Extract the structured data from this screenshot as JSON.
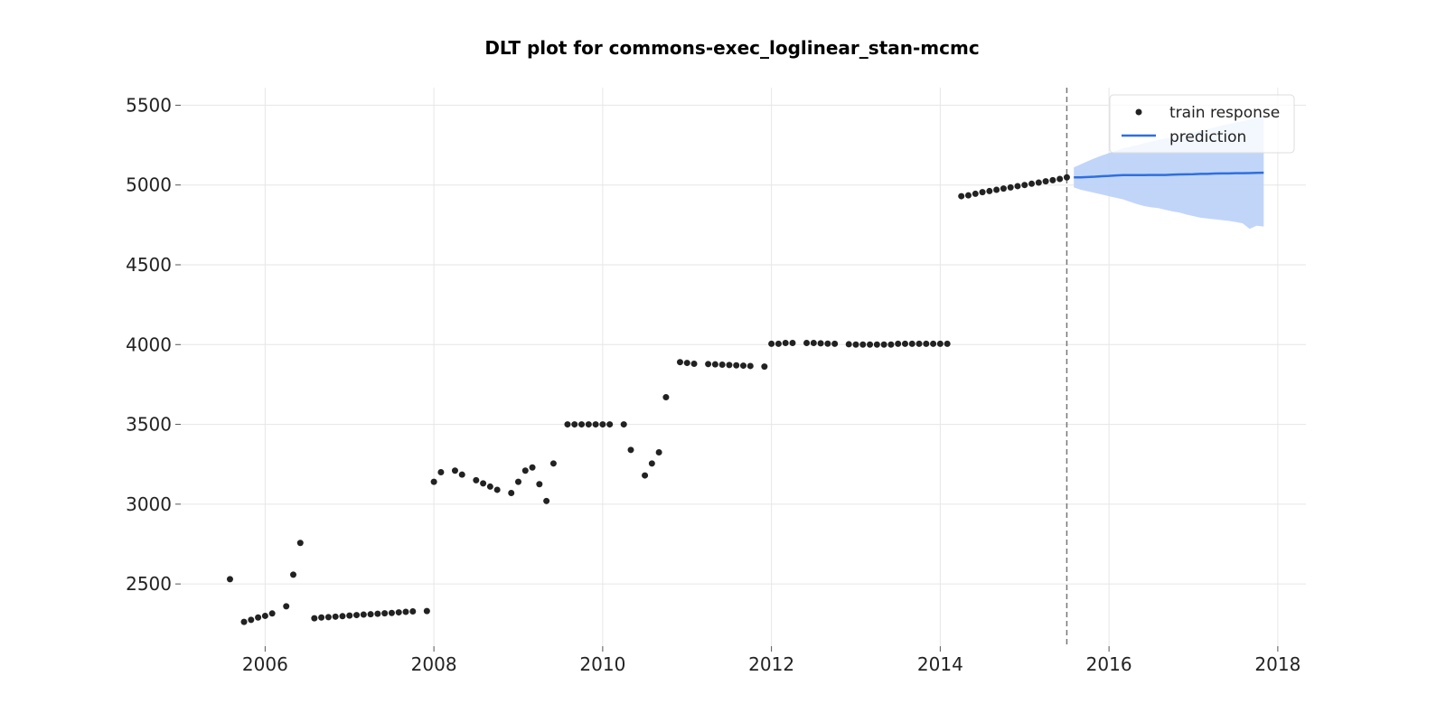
{
  "chart_data": {
    "type": "scatter",
    "title": "DLT plot for commons-exec_loglinear_stan-mcmc",
    "xlabel": "",
    "ylabel": "",
    "x_ticks": [
      "2006",
      "2008",
      "2010",
      "2012",
      "2014",
      "2016",
      "2018"
    ],
    "y_ticks": [
      "2500",
      "3000",
      "3500",
      "4000",
      "4500",
      "5000",
      "5500"
    ],
    "xlim": [
      "2005-01-01",
      "2018-05-01"
    ],
    "ylim": [
      2110,
      5610
    ],
    "grid": true,
    "legend_position": "top-right",
    "training_end": "2015-07-01",
    "series": [
      {
        "name": "train response",
        "kind": "scatter",
        "color": "#222222",
        "points": [
          [
            "2005-08-01",
            2530
          ],
          [
            "2005-10-01",
            2262
          ],
          [
            "2005-11-01",
            2275
          ],
          [
            "2005-12-01",
            2290
          ],
          [
            "2006-01-01",
            2300
          ],
          [
            "2006-02-01",
            2315
          ],
          [
            "2006-04-01",
            2360
          ],
          [
            "2006-05-01",
            2558
          ],
          [
            "2006-06-01",
            2757
          ],
          [
            "2006-08-01",
            2285
          ],
          [
            "2006-09-01",
            2290
          ],
          [
            "2006-10-01",
            2292
          ],
          [
            "2006-11-01",
            2295
          ],
          [
            "2006-12-01",
            2298
          ],
          [
            "2007-01-01",
            2302
          ],
          [
            "2007-02-01",
            2305
          ],
          [
            "2007-03-01",
            2308
          ],
          [
            "2007-04-01",
            2310
          ],
          [
            "2007-05-01",
            2313
          ],
          [
            "2007-06-01",
            2316
          ],
          [
            "2007-07-01",
            2318
          ],
          [
            "2007-08-01",
            2322
          ],
          [
            "2007-09-01",
            2325
          ],
          [
            "2007-10-01",
            2328
          ],
          [
            "2007-12-01",
            2330
          ],
          [
            "2008-01-01",
            3140
          ],
          [
            "2008-02-01",
            3200
          ],
          [
            "2008-04-01",
            3210
          ],
          [
            "2008-05-01",
            3185
          ],
          [
            "2008-07-01",
            3150
          ],
          [
            "2008-08-01",
            3130
          ],
          [
            "2008-09-01",
            3110
          ],
          [
            "2008-10-01",
            3090
          ],
          [
            "2008-12-01",
            3070
          ],
          [
            "2009-01-01",
            3140
          ],
          [
            "2009-02-01",
            3210
          ],
          [
            "2009-03-01",
            3230
          ],
          [
            "2009-04-01",
            3125
          ],
          [
            "2009-05-01",
            3020
          ],
          [
            "2009-06-01",
            3255
          ],
          [
            "2009-08-01",
            3500
          ],
          [
            "2009-09-01",
            3500
          ],
          [
            "2009-10-01",
            3500
          ],
          [
            "2009-11-01",
            3500
          ],
          [
            "2009-12-01",
            3500
          ],
          [
            "2010-01-01",
            3500
          ],
          [
            "2010-02-01",
            3500
          ],
          [
            "2010-04-01",
            3500
          ],
          [
            "2010-05-01",
            3340
          ],
          [
            "2010-07-01",
            3180
          ],
          [
            "2010-08-01",
            3255
          ],
          [
            "2010-09-01",
            3325
          ],
          [
            "2010-10-01",
            3670
          ],
          [
            "2010-12-01",
            3890
          ],
          [
            "2011-01-01",
            3885
          ],
          [
            "2011-02-01",
            3880
          ],
          [
            "2011-04-01",
            3878
          ],
          [
            "2011-05-01",
            3876
          ],
          [
            "2011-06-01",
            3874
          ],
          [
            "2011-07-01",
            3872
          ],
          [
            "2011-08-01",
            3870
          ],
          [
            "2011-09-01",
            3868
          ],
          [
            "2011-10-01",
            3866
          ],
          [
            "2011-12-01",
            3862
          ],
          [
            "2012-01-01",
            4005
          ],
          [
            "2012-02-01",
            4005
          ],
          [
            "2012-03-01",
            4010
          ],
          [
            "2012-04-01",
            4010
          ],
          [
            "2012-06-01",
            4010
          ],
          [
            "2012-07-01",
            4010
          ],
          [
            "2012-08-01",
            4008
          ],
          [
            "2012-09-01",
            4006
          ],
          [
            "2012-10-01",
            4005
          ],
          [
            "2012-12-01",
            4002
          ],
          [
            "2013-01-01",
            4000
          ],
          [
            "2013-02-01",
            4000
          ],
          [
            "2013-03-01",
            4000
          ],
          [
            "2013-04-01",
            4000
          ],
          [
            "2013-05-01",
            4000
          ],
          [
            "2013-06-01",
            4000
          ],
          [
            "2013-07-01",
            4005
          ],
          [
            "2013-08-01",
            4005
          ],
          [
            "2013-09-01",
            4005
          ],
          [
            "2013-10-01",
            4005
          ],
          [
            "2013-11-01",
            4005
          ],
          [
            "2013-12-01",
            4005
          ],
          [
            "2014-01-01",
            4005
          ],
          [
            "2014-02-01",
            4005
          ],
          [
            "2014-04-01",
            4930
          ],
          [
            "2014-05-01",
            4935
          ],
          [
            "2014-06-01",
            4945
          ],
          [
            "2014-07-01",
            4955
          ],
          [
            "2014-08-01",
            4962
          ],
          [
            "2014-09-01",
            4970
          ],
          [
            "2014-10-01",
            4978
          ],
          [
            "2014-11-01",
            4985
          ],
          [
            "2014-12-01",
            4993
          ],
          [
            "2015-01-01",
            5000
          ],
          [
            "2015-02-01",
            5008
          ],
          [
            "2015-03-01",
            5015
          ],
          [
            "2015-04-01",
            5023
          ],
          [
            "2015-05-01",
            5030
          ],
          [
            "2015-06-01",
            5038
          ],
          [
            "2015-07-01",
            5048
          ]
        ]
      },
      {
        "name": "prediction",
        "kind": "line",
        "color": "#2F6FDD",
        "band_color": "#BED3F9",
        "points": [
          [
            "2015-08-01",
            5048,
            4985,
            5110
          ],
          [
            "2015-09-01",
            5048,
            4970,
            5130
          ],
          [
            "2015-10-01",
            5050,
            4960,
            5150
          ],
          [
            "2015-11-01",
            5052,
            4950,
            5168
          ],
          [
            "2015-12-01",
            5055,
            4940,
            5185
          ],
          [
            "2016-01-01",
            5057,
            4930,
            5200
          ],
          [
            "2016-02-01",
            5060,
            4920,
            5215
          ],
          [
            "2016-03-01",
            5062,
            4910,
            5230
          ],
          [
            "2016-04-01",
            5062,
            4895,
            5240
          ],
          [
            "2016-05-01",
            5062,
            4880,
            5250
          ],
          [
            "2016-06-01",
            5062,
            4868,
            5262
          ],
          [
            "2016-07-01",
            5063,
            4860,
            5272
          ],
          [
            "2016-08-01",
            5063,
            4855,
            5282
          ],
          [
            "2016-09-01",
            5063,
            4845,
            5292
          ],
          [
            "2016-10-01",
            5065,
            4835,
            5300
          ],
          [
            "2016-11-01",
            5066,
            4828,
            5310
          ],
          [
            "2016-12-01",
            5067,
            4815,
            5320
          ],
          [
            "2017-01-01",
            5068,
            4805,
            5330
          ],
          [
            "2017-02-01",
            5070,
            4795,
            5340
          ],
          [
            "2017-03-01",
            5070,
            4790,
            5350
          ],
          [
            "2017-04-01",
            5072,
            4785,
            5360
          ],
          [
            "2017-05-01",
            5073,
            4780,
            5372
          ],
          [
            "2017-06-01",
            5073,
            4775,
            5382
          ],
          [
            "2017-07-01",
            5074,
            4768,
            5392
          ],
          [
            "2017-08-01",
            5074,
            4760,
            5400
          ],
          [
            "2017-09-01",
            5075,
            4725,
            5410
          ],
          [
            "2017-10-01",
            5076,
            4745,
            5420
          ],
          [
            "2017-11-01",
            5077,
            4740,
            5430
          ]
        ]
      }
    ]
  }
}
